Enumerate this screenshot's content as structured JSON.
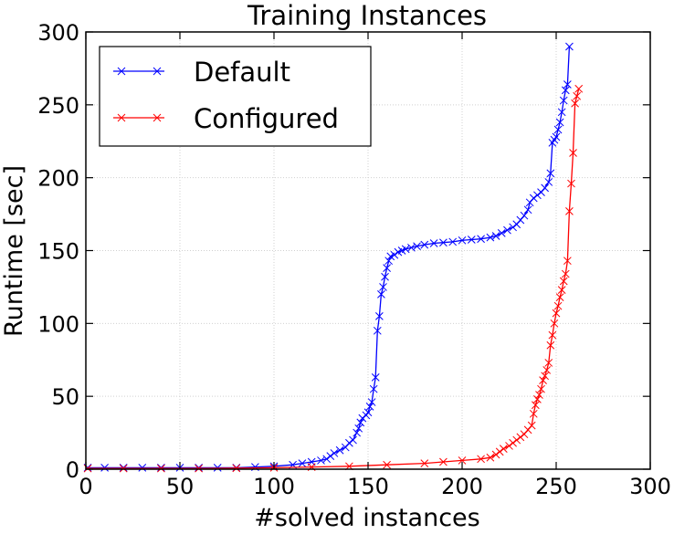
{
  "chart_data": {
    "type": "line",
    "title": "Training Instances",
    "xlabel": "#solved instances",
    "ylabel": "Runtime [sec]",
    "xlim": [
      0,
      300
    ],
    "ylim": [
      0,
      300
    ],
    "xticks": [
      "0",
      "50",
      "100",
      "150",
      "200",
      "250",
      "300"
    ],
    "yticks": [
      "0",
      "50",
      "100",
      "150",
      "200",
      "250",
      "300"
    ],
    "grid": true,
    "legend_position": "top-left",
    "marker": "x",
    "series": [
      {
        "name": "Default",
        "color": "#0000ff",
        "points": [
          [
            1,
            1
          ],
          [
            10,
            1
          ],
          [
            20,
            1
          ],
          [
            30,
            1
          ],
          [
            40,
            1
          ],
          [
            50,
            1
          ],
          [
            60,
            1
          ],
          [
            70,
            1
          ],
          [
            80,
            1
          ],
          [
            90,
            1.5
          ],
          [
            100,
            2
          ],
          [
            110,
            3
          ],
          [
            115,
            4
          ],
          [
            120,
            5
          ],
          [
            125,
            6
          ],
          [
            128,
            7
          ],
          [
            130,
            9
          ],
          [
            132,
            11
          ],
          [
            135,
            13
          ],
          [
            138,
            15
          ],
          [
            140,
            18
          ],
          [
            142,
            20
          ],
          [
            144,
            25
          ],
          [
            145,
            28
          ],
          [
            146,
            32
          ],
          [
            147,
            35
          ],
          [
            149,
            37
          ],
          [
            150,
            39
          ],
          [
            151,
            43
          ],
          [
            152,
            46
          ],
          [
            153,
            55
          ],
          [
            154,
            63
          ],
          [
            155,
            95
          ],
          [
            156,
            105
          ],
          [
            157,
            120
          ],
          [
            158,
            125
          ],
          [
            159,
            132
          ],
          [
            160,
            138
          ],
          [
            161,
            143
          ],
          [
            162,
            146
          ],
          [
            164,
            147
          ],
          [
            166,
            149
          ],
          [
            168,
            150
          ],
          [
            170,
            151
          ],
          [
            173,
            152
          ],
          [
            176,
            153
          ],
          [
            180,
            154
          ],
          [
            185,
            155
          ],
          [
            190,
            155.5
          ],
          [
            195,
            156
          ],
          [
            200,
            157
          ],
          [
            205,
            157.5
          ],
          [
            210,
            158
          ],
          [
            215,
            159
          ],
          [
            218,
            160
          ],
          [
            221,
            162
          ],
          [
            224,
            164
          ],
          [
            227,
            166
          ],
          [
            229,
            168
          ],
          [
            231,
            171
          ],
          [
            233,
            174
          ],
          [
            235,
            178
          ],
          [
            236,
            183
          ],
          [
            238,
            186
          ],
          [
            240,
            188
          ],
          [
            242,
            190
          ],
          [
            244,
            193
          ],
          [
            246,
            197
          ],
          [
            247,
            203
          ],
          [
            248,
            224
          ],
          [
            249,
            226
          ],
          [
            250,
            228
          ],
          [
            251,
            233
          ],
          [
            252,
            238
          ],
          [
            253,
            245
          ],
          [
            254,
            253
          ],
          [
            255,
            260
          ],
          [
            256,
            264
          ],
          [
            257,
            290
          ]
        ]
      },
      {
        "name": "Configured",
        "color": "#ff0000",
        "points": [
          [
            1,
            0.5
          ],
          [
            20,
            0.5
          ],
          [
            40,
            0.5
          ],
          [
            60,
            0.5
          ],
          [
            80,
            0.7
          ],
          [
            100,
            1
          ],
          [
            120,
            1.5
          ],
          [
            140,
            2
          ],
          [
            160,
            3
          ],
          [
            180,
            4
          ],
          [
            190,
            5
          ],
          [
            200,
            6
          ],
          [
            210,
            7
          ],
          [
            215,
            8
          ],
          [
            218,
            10
          ],
          [
            220,
            12
          ],
          [
            222,
            14
          ],
          [
            225,
            16
          ],
          [
            227,
            18
          ],
          [
            229,
            20
          ],
          [
            231,
            22
          ],
          [
            233,
            24
          ],
          [
            235,
            27
          ],
          [
            237,
            30
          ],
          [
            238,
            38
          ],
          [
            239,
            44
          ],
          [
            240,
            48
          ],
          [
            241,
            51
          ],
          [
            242,
            55
          ],
          [
            243,
            61
          ],
          [
            244,
            64
          ],
          [
            245,
            68
          ],
          [
            246,
            73
          ],
          [
            247,
            85
          ],
          [
            248,
            92
          ],
          [
            249,
            100
          ],
          [
            250,
            107
          ],
          [
            251,
            112
          ],
          [
            252,
            118
          ],
          [
            253,
            123
          ],
          [
            254,
            129
          ],
          [
            255,
            134
          ],
          [
            256,
            143
          ],
          [
            257,
            177
          ],
          [
            258,
            196
          ],
          [
            259,
            217
          ],
          [
            260,
            251
          ],
          [
            261,
            256
          ],
          [
            262,
            261
          ]
        ]
      }
    ]
  }
}
